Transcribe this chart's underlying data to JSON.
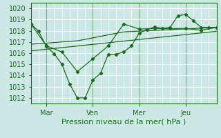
{
  "bg_color": "#cce8e4",
  "grid_color": "#ffffff",
  "line_color": "#1a6b1a",
  "title": "Pression niveau de la mer( hPa )",
  "ylim": [
    1011.5,
    1020.5
  ],
  "yticks": [
    1012,
    1013,
    1014,
    1015,
    1016,
    1017,
    1018,
    1019,
    1020
  ],
  "xtick_labels": [
    "Mar",
    "Ven",
    "Mer",
    "Jeu"
  ],
  "xtick_positions": [
    1,
    4,
    7,
    10
  ],
  "xlim": [
    0,
    12
  ],
  "vline_x": [
    1,
    4,
    7,
    10
  ],
  "line1_x": [
    0,
    0.5,
    1.0,
    1.5,
    2.0,
    2.5,
    3.0,
    3.5,
    4.0,
    4.5,
    5.0,
    5.5,
    6.0,
    6.5,
    7.0,
    7.5,
    8.0,
    8.5,
    9.0,
    9.5,
    10.0,
    10.5,
    11.0,
    11.5,
    12.0
  ],
  "line1_y": [
    1018.6,
    1017.95,
    1016.6,
    1015.95,
    1015.0,
    1013.25,
    1012.0,
    1012.0,
    1013.6,
    1014.2,
    1015.9,
    1015.9,
    1016.1,
    1016.65,
    1017.8,
    1018.1,
    1018.35,
    1018.2,
    1018.3,
    1019.35,
    1019.45,
    1018.9,
    1018.3,
    1018.3,
    1018.3
  ],
  "line2_x": [
    0,
    1.0,
    2.0,
    3.0,
    4.0,
    5.0,
    6.0,
    7.0,
    8.0,
    9.0,
    10.0,
    11.0,
    12.0
  ],
  "line2_y": [
    1018.6,
    1016.65,
    1016.1,
    1014.35,
    1015.5,
    1016.65,
    1018.6,
    1018.15,
    1018.2,
    1018.2,
    1018.2,
    1018.05,
    1018.3
  ],
  "line3_x": [
    0,
    3,
    6,
    9,
    12
  ],
  "line3_y": [
    1016.8,
    1017.1,
    1017.9,
    1018.1,
    1018.3
  ],
  "line4_x": [
    0,
    12
  ],
  "line4_y": [
    1016.2,
    1017.95
  ],
  "marker1_x": [
    0,
    0.5,
    1.0,
    1.5,
    2.0,
    2.5,
    3.0,
    3.5,
    4.0,
    4.5,
    5.0,
    5.5,
    6.0,
    6.5,
    7.0,
    7.5,
    8.0,
    8.5,
    9.0,
    9.5,
    10.0,
    10.5,
    11.0,
    11.5,
    12.0
  ],
  "marker1_y": [
    1018.6,
    1017.95,
    1016.6,
    1015.95,
    1015.0,
    1013.25,
    1012.0,
    1012.0,
    1013.6,
    1014.2,
    1015.9,
    1015.9,
    1016.1,
    1016.65,
    1017.8,
    1018.1,
    1018.35,
    1018.2,
    1018.3,
    1019.35,
    1019.45,
    1018.9,
    1018.3,
    1018.3,
    1018.3
  ]
}
